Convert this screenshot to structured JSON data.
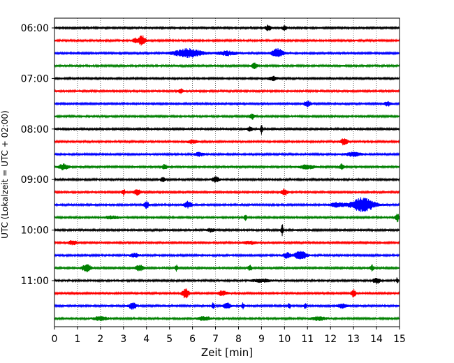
{
  "chart_data": {
    "type": "line",
    "title": "",
    "xlabel": "Zeit  [min]",
    "ylabel": "UTC (Lokalzeit = UTC + 02:00)",
    "xlim": [
      0,
      15
    ],
    "x_ticks": [
      "0",
      "1",
      "2",
      "3",
      "4",
      "5",
      "6",
      "7",
      "8",
      "9",
      "10",
      "11",
      "12",
      "13",
      "14",
      "15"
    ],
    "y_tick_labels": [
      "06:00",
      "07:00",
      "08:00",
      "09:00",
      "10:00",
      "11:00"
    ],
    "grid": "vertical-dotted",
    "trace_color_cycle": [
      "#000000",
      "#ff0000",
      "#0000ff",
      "#008000"
    ],
    "trace_interval_minutes": 15,
    "traces": [
      {
        "start": "06:00",
        "color": "#000000",
        "events": [
          [
            9.3,
            4,
            0.12
          ],
          [
            10.0,
            3,
            0.1
          ]
        ]
      },
      {
        "start": "06:15",
        "color": "#ff0000",
        "events": [
          [
            3.8,
            7,
            0.15
          ],
          [
            3.5,
            3,
            0.1
          ]
        ]
      },
      {
        "start": "06:30",
        "color": "#0000ff",
        "events": [
          [
            5.8,
            6,
            0.6
          ],
          [
            9.7,
            6,
            0.25
          ],
          [
            7.5,
            3,
            0.4
          ]
        ]
      },
      {
        "start": "06:45",
        "color": "#008000",
        "events": [
          [
            8.7,
            5,
            0.1
          ]
        ]
      },
      {
        "start": "07:00",
        "color": "#000000",
        "events": [
          [
            9.5,
            2.5,
            0.2
          ]
        ]
      },
      {
        "start": "07:15",
        "color": "#ff0000",
        "events": [
          [
            5.5,
            3,
            0.1
          ]
        ]
      },
      {
        "start": "07:30",
        "color": "#0000ff",
        "events": [
          [
            11.0,
            4,
            0.15
          ],
          [
            14.5,
            3,
            0.15
          ]
        ]
      },
      {
        "start": "07:45",
        "color": "#008000",
        "events": [
          [
            8.6,
            4,
            0.1
          ]
        ]
      },
      {
        "start": "08:00",
        "color": "#000000",
        "events": [
          [
            9.0,
            8,
            0.04
          ],
          [
            8.5,
            3,
            0.1
          ]
        ]
      },
      {
        "start": "08:15",
        "color": "#ff0000",
        "events": [
          [
            12.6,
            5,
            0.15
          ],
          [
            6.0,
            2.5,
            0.2
          ]
        ]
      },
      {
        "start": "08:30",
        "color": "#0000ff",
        "events": [
          [
            13.0,
            3,
            0.3
          ],
          [
            6.3,
            2.5,
            0.2
          ]
        ]
      },
      {
        "start": "08:45",
        "color": "#008000",
        "events": [
          [
            0.4,
            4,
            0.2
          ],
          [
            4.8,
            4,
            0.1
          ],
          [
            12.5,
            4,
            0.1
          ],
          [
            11.0,
            3,
            0.3
          ]
        ]
      },
      {
        "start": "09:00",
        "color": "#000000",
        "events": [
          [
            7.0,
            4,
            0.15
          ],
          [
            4.7,
            3,
            0.1
          ]
        ]
      },
      {
        "start": "09:15",
        "color": "#ff0000",
        "events": [
          [
            10.0,
            5,
            0.12
          ],
          [
            3.0,
            4,
            0.08
          ],
          [
            3.6,
            4,
            0.15
          ]
        ]
      },
      {
        "start": "09:30",
        "color": "#0000ff",
        "events": [
          [
            13.4,
            10,
            0.5
          ],
          [
            4.0,
            5,
            0.1
          ],
          [
            5.8,
            5,
            0.15
          ],
          [
            12.3,
            3,
            0.3
          ]
        ]
      },
      {
        "start": "09:45",
        "color": "#008000",
        "events": [
          [
            14.9,
            6,
            0.08
          ],
          [
            8.3,
            4,
            0.06
          ],
          [
            2.5,
            2,
            0.3
          ]
        ]
      },
      {
        "start": "10:00",
        "color": "#000000",
        "events": [
          [
            9.9,
            8,
            0.05
          ],
          [
            6.8,
            2.5,
            0.15
          ]
        ]
      },
      {
        "start": "10:15",
        "color": "#ff0000",
        "events": [
          [
            0.8,
            3,
            0.2
          ],
          [
            8.5,
            2,
            0.3
          ]
        ]
      },
      {
        "start": "10:30",
        "color": "#0000ff",
        "events": [
          [
            10.7,
            6,
            0.25
          ],
          [
            10.1,
            4,
            0.15
          ],
          [
            3.5,
            2.5,
            0.2
          ]
        ]
      },
      {
        "start": "10:45",
        "color": "#008000",
        "events": [
          [
            1.4,
            5,
            0.2
          ],
          [
            3.7,
            4,
            0.2
          ],
          [
            5.3,
            4,
            0.06
          ],
          [
            8.5,
            4,
            0.08
          ],
          [
            13.8,
            4,
            0.08
          ]
        ]
      },
      {
        "start": "11:00",
        "color": "#000000",
        "events": [
          [
            14.0,
            4,
            0.15
          ],
          [
            14.9,
            4,
            0.04
          ],
          [
            9.0,
            2,
            0.4
          ]
        ]
      },
      {
        "start": "11:15",
        "color": "#ff0000",
        "events": [
          [
            5.7,
            7,
            0.15
          ],
          [
            13.0,
            5,
            0.1
          ],
          [
            7.3,
            3,
            0.2
          ]
        ]
      },
      {
        "start": "11:30",
        "color": "#0000ff",
        "events": [
          [
            3.4,
            5,
            0.15
          ],
          [
            6.9,
            5,
            0.05
          ],
          [
            7.5,
            4,
            0.15
          ],
          [
            8.2,
            4,
            0.06
          ],
          [
            10.2,
            4,
            0.06
          ],
          [
            10.9,
            4,
            0.06
          ],
          [
            12.5,
            3,
            0.2
          ]
        ]
      },
      {
        "start": "11:45",
        "color": "#008000",
        "events": [
          [
            2.0,
            2.5,
            0.3
          ],
          [
            6.5,
            2.5,
            0.3
          ],
          [
            11.5,
            2.5,
            0.3
          ]
        ]
      }
    ]
  }
}
